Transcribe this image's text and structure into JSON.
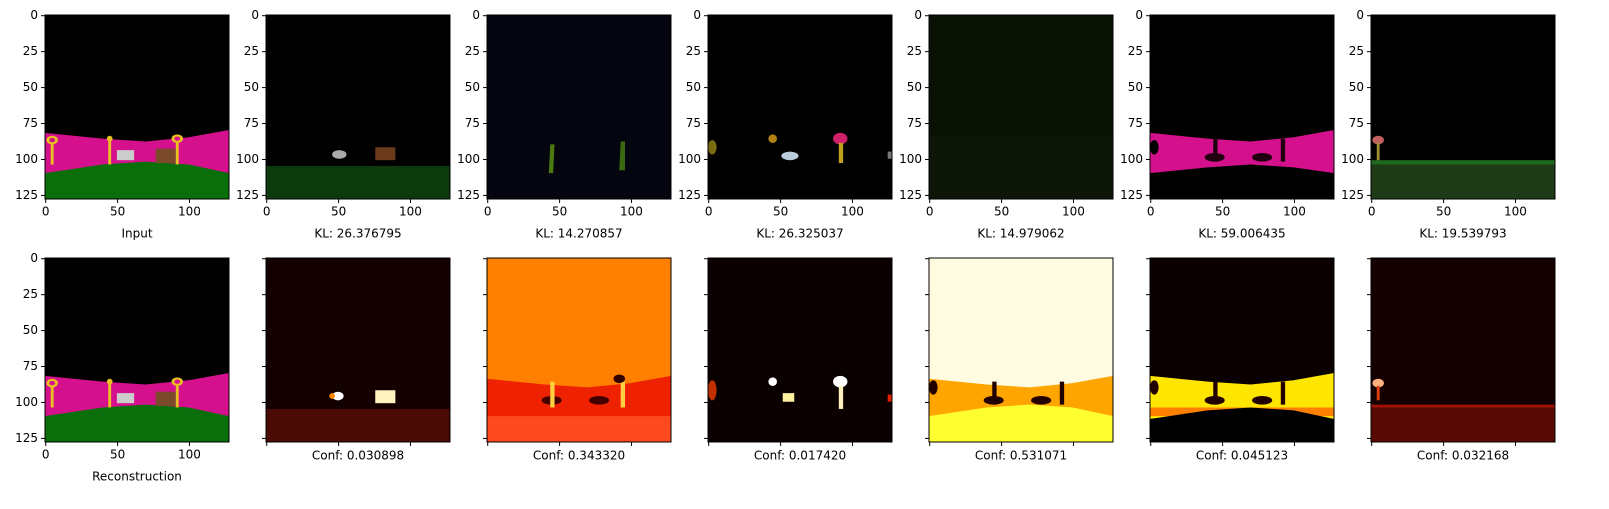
{
  "axes": {
    "xlim": [
      -0.5,
      127.5
    ],
    "ylim": [
      -0.5,
      127.5
    ],
    "xticks": [
      0,
      50,
      100
    ],
    "yticks": [
      0,
      25,
      50,
      75,
      100,
      125
    ]
  },
  "rows": [
    {
      "panels": [
        {
          "caption": "Input"
        },
        {
          "caption": "KL: 26.376795"
        },
        {
          "caption": "KL: 14.270857"
        },
        {
          "caption": "KL: 26.325037"
        },
        {
          "caption": "KL: 14.979062"
        },
        {
          "caption": "KL: 59.006435"
        },
        {
          "caption": "KL: 19.539793"
        }
      ]
    },
    {
      "panels": [
        {
          "caption": "Reconstruction"
        },
        {
          "caption": "Conf: 0.030898"
        },
        {
          "caption": "Conf: 0.343320"
        },
        {
          "caption": "Conf: 0.017420"
        },
        {
          "caption": "Conf: 0.531071"
        },
        {
          "caption": "Conf: 0.045123"
        },
        {
          "caption": "Conf: 0.032168"
        }
      ]
    }
  ]
}
